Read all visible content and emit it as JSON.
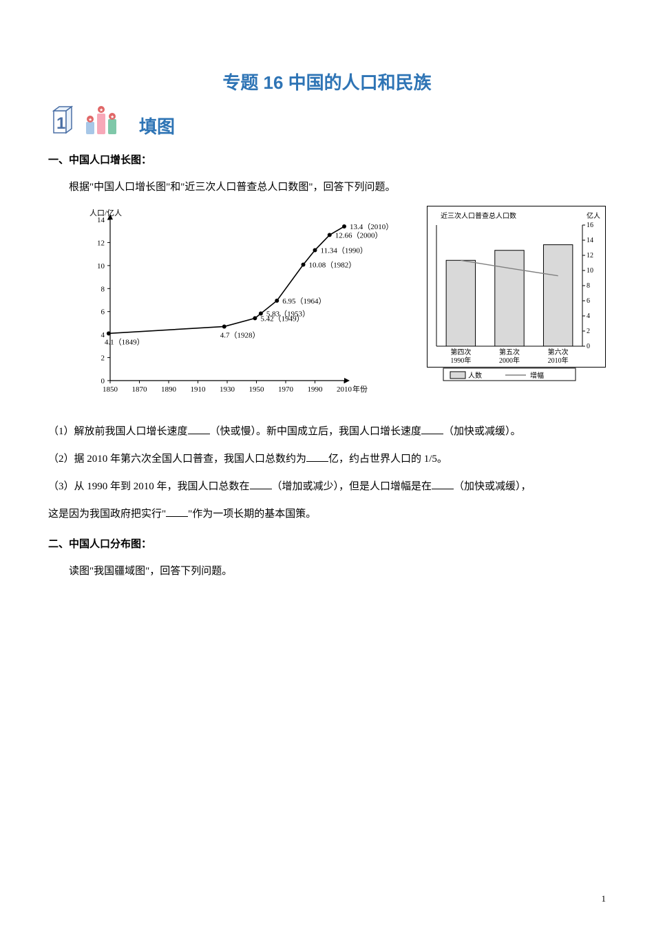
{
  "title": "专题 16  中国的人口和民族",
  "section_header": "填图",
  "h1": "一、中国人口增长图：",
  "intro1": "根据\"中国人口增长图\"和\"近三次人口普查总人口数图\"，回答下列问题。",
  "q1_pre": "（1）解放前我国人口增长速度",
  "q1_mid1": "（快或慢）。新中国成立后，我国人口增长速度",
  "q1_end": "（加快或减缓）。",
  "q2_pre": "（2）据 2010 年第六次全国人口普查，我国人口总数约为",
  "q2_end": "亿，约占世界人口的 1/5。",
  "q3_pre": "（3）从 1990 年到 2010 年，我国人口总数在",
  "q3_mid1": "（增加或减少），但是人口增幅是在",
  "q3_mid2": "（加快或减缓），",
  "q3_line2_pre": "这是因为我国政府把实行\"",
  "q3_line2_end": "\"作为一项长期的基本国策。",
  "h2": "二、中国人口分布图：",
  "intro2": "读图\"我国疆域图\"，回答下列问题。",
  "page_number": "1",
  "line_chart": {
    "type": "line",
    "y_label": "人口/亿人",
    "x_label_suffix": "年份",
    "xlim": [
      1850,
      2010
    ],
    "ylim": [
      0,
      14
    ],
    "y_ticks": [
      0,
      2,
      4,
      6,
      8,
      10,
      12,
      14
    ],
    "x_ticks": [
      1850,
      1870,
      1890,
      1910,
      1930,
      1950,
      1970,
      1990,
      2010
    ],
    "points": [
      {
        "year": 1849,
        "value": 4.1,
        "label": "4.1（1849）",
        "label_pos": "below"
      },
      {
        "year": 1928,
        "value": 4.7,
        "label": "4.7（1928）",
        "label_pos": "below"
      },
      {
        "year": 1949,
        "value": 5.42,
        "label": "5.42（1949）",
        "label_pos": "right"
      },
      {
        "year": 1953,
        "value": 5.83,
        "label": "5.83（1953）",
        "label_pos": "right"
      },
      {
        "year": 1964,
        "value": 6.95,
        "label": "6.95（1964）",
        "label_pos": "right"
      },
      {
        "year": 1982,
        "value": 10.08,
        "label": "10.08（1982）",
        "label_pos": "right"
      },
      {
        "year": 1990,
        "value": 11.34,
        "label": "11.34（1990）",
        "label_pos": "right"
      },
      {
        "year": 2000,
        "value": 12.66,
        "label": "12.66（2000）",
        "label_pos": "right"
      },
      {
        "year": 2010,
        "value": 13.4,
        "label": "13.4（2010）",
        "label_pos": "right"
      }
    ],
    "line_color": "#000000",
    "marker_fill": "#000000",
    "marker_radius": 3,
    "axis_color": "#000000",
    "font_size": 11
  },
  "bar_chart": {
    "type": "bar+line",
    "title": "近三次人口普查总人口数",
    "y_right_label": "亿人",
    "ylim": [
      0,
      16
    ],
    "y_ticks": [
      0,
      2,
      4,
      6,
      8,
      10,
      12,
      14,
      16
    ],
    "categories": [
      {
        "top": "第四次",
        "bottom": "1990年"
      },
      {
        "top": "第五次",
        "bottom": "2000年"
      },
      {
        "top": "第六次",
        "bottom": "2010年"
      }
    ],
    "bar_values": [
      11.34,
      12.66,
      13.4
    ],
    "line_values": [
      11.34,
      10.3,
      9.3
    ],
    "bar_fill": "#d9d9d9",
    "bar_stroke": "#000000",
    "line_color": "#808080",
    "axis_color": "#000000",
    "border_color": "#000000",
    "legend": {
      "bar": "人数",
      "line": "增幅"
    },
    "font_size": 10
  },
  "icon_colors": {
    "bar1": "#a7c7e7",
    "bar2": "#f7a8b8",
    "bar3": "#7fc8a9",
    "outline": "#4a6fa5",
    "badge": "#e06666"
  }
}
